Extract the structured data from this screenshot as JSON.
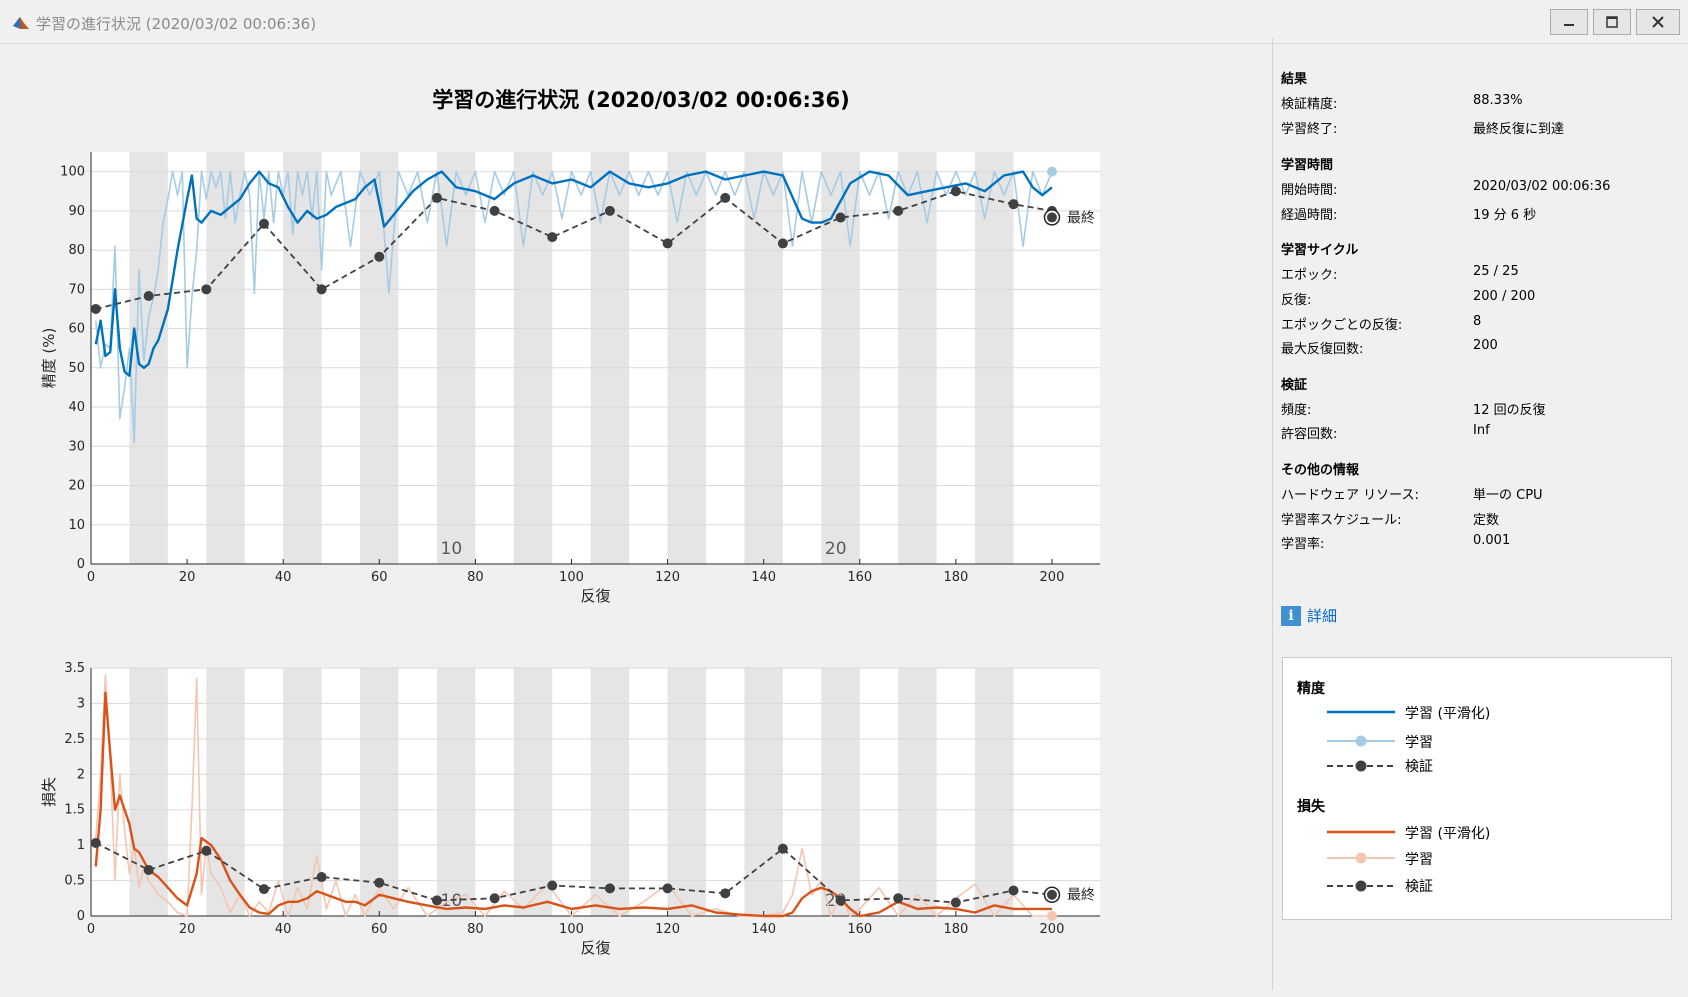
{
  "window": {
    "title": "学習の進行状況 (2020/03/02 00:06:36)"
  },
  "main_title": "学習の進行状況 (2020/03/02 00:06:36)",
  "panel": {
    "results_h": "結果",
    "val_acc_k": "検証精度:",
    "val_acc_v": "88.33%",
    "end_k": "学習終了:",
    "end_v": "最終反復に到達",
    "time_h": "学習時間",
    "start_k": "開始時間:",
    "start_v": "2020/03/02 00:06:36",
    "elapsed_k": "経過時間:",
    "elapsed_v": "19 分 6 秒",
    "cycle_h": "学習サイクル",
    "epoch_k": "エポック:",
    "epoch_v": "25 / 25",
    "iter_k": "反復:",
    "iter_v": "200 / 200",
    "iter_per_epoch_k": "エポックごとの反復:",
    "iter_per_epoch_v": "8",
    "max_iter_k": "最大反復回数:",
    "max_iter_v": "200",
    "val_h": "検証",
    "freq_k": "頻度:",
    "freq_v": "12 回の反復",
    "patience_k": "許容回数:",
    "patience_v": "Inf",
    "other_h": "その他の情報",
    "hw_k": "ハードウェア リソース:",
    "hw_v": "単一の CPU",
    "sched_k": "学習率スケジュール:",
    "sched_v": "定数",
    "lr_k": "学習率:",
    "lr_v": "0.001",
    "detail": "詳細"
  },
  "legend": {
    "acc_h": "精度",
    "acc_smooth": "学習 (平滑化)",
    "acc_train": "学習",
    "acc_val": "検証",
    "loss_h": "損失",
    "loss_smooth": "学習 (平滑化)",
    "loss_train": "学習",
    "loss_val": "検証"
  },
  "colors": {
    "acc_smooth": "#0072bd",
    "acc_train": "#a6cbe5",
    "loss_smooth": "#d95319",
    "loss_train": "#f4c6b2",
    "val": "#404040",
    "shade": "#e5e5e5"
  },
  "chart_data": [
    {
      "type": "line",
      "xlabel": "反復",
      "ylabel": "精度 (%)",
      "xlim": [
        0,
        210
      ],
      "ylim": [
        0,
        105
      ],
      "xticks": [
        "0",
        "20",
        "40",
        "60",
        "80",
        "100",
        "120",
        "140",
        "160",
        "180",
        "200"
      ],
      "yticks": [
        "0",
        "10",
        "20",
        "30",
        "40",
        "50",
        "60",
        "70",
        "80",
        "90",
        "100"
      ],
      "epoch_labels": [
        {
          "epoch": "10",
          "x": 75
        },
        {
          "epoch": "20",
          "x": 155
        }
      ],
      "final_label": "最終",
      "series": [
        {
          "key": "acc_smooth",
          "x": [
            1,
            2,
            3,
            4,
            5,
            6,
            7,
            8,
            9,
            10,
            11,
            12,
            13,
            14,
            16,
            18,
            20,
            21,
            22,
            23,
            25,
            27,
            29,
            31,
            33,
            35,
            37,
            39,
            41,
            43,
            45,
            47,
            49,
            51,
            53,
            55,
            57,
            59,
            61,
            63,
            65,
            67,
            70,
            73,
            76,
            80,
            84,
            88,
            92,
            96,
            100,
            104,
            108,
            112,
            116,
            120,
            124,
            128,
            132,
            136,
            140,
            144,
            148,
            150,
            152,
            154,
            158,
            162,
            166,
            170,
            174,
            178,
            182,
            186,
            190,
            194,
            196,
            198,
            200
          ],
          "y": [
            56,
            62,
            53,
            54,
            70,
            55,
            49,
            48,
            60,
            51,
            50,
            51,
            55,
            57,
            65,
            80,
            93,
            99,
            88,
            87,
            90,
            89,
            91,
            93,
            97,
            100,
            97,
            96,
            91,
            87,
            90,
            88,
            89,
            91,
            92,
            93,
            96,
            98,
            86,
            89,
            92,
            95,
            98,
            100,
            96,
            95,
            93,
            97,
            99,
            97,
            98,
            96,
            100,
            97,
            96,
            97,
            99,
            100,
            98,
            99,
            100,
            99,
            88,
            87,
            87,
            88,
            97,
            100,
            99,
            94,
            95,
            96,
            97,
            95,
            99,
            100,
            96,
            94,
            96
          ]
        },
        {
          "key": "acc_train",
          "x": [
            1,
            2,
            3,
            4,
            5,
            6,
            7,
            8,
            9,
            10,
            11,
            12,
            13,
            14,
            15,
            16,
            17,
            18,
            19,
            20,
            21,
            22,
            23,
            24,
            25,
            26,
            27,
            28,
            29,
            30,
            31,
            32,
            33,
            34,
            35,
            36,
            37,
            38,
            39,
            40,
            41,
            42,
            43,
            44,
            45,
            46,
            47,
            48,
            49,
            50,
            52,
            54,
            56,
            58,
            60,
            62,
            64,
            66,
            68,
            70,
            72,
            74,
            76,
            78,
            80,
            82,
            84,
            86,
            88,
            90,
            92,
            94,
            96,
            98,
            100,
            102,
            104,
            106,
            108,
            110,
            112,
            114,
            116,
            118,
            120,
            122,
            124,
            126,
            128,
            130,
            132,
            134,
            136,
            138,
            140,
            142,
            144,
            146,
            148,
            150,
            152,
            154,
            156,
            158,
            160,
            162,
            164,
            166,
            168,
            170,
            172,
            174,
            176,
            178,
            180,
            182,
            184,
            186,
            188,
            190,
            192,
            194,
            196,
            198,
            200
          ],
          "y": [
            62,
            50,
            56,
            55,
            81,
            37,
            45,
            55,
            31,
            75,
            52,
            63,
            68,
            75,
            87,
            93,
            100,
            94,
            100,
            50,
            68,
            80,
            100,
            93,
            100,
            96,
            100,
            88,
            100,
            87,
            94,
            100,
            94,
            69,
            100,
            88,
            100,
            87,
            100,
            94,
            100,
            84,
            100,
            94,
            100,
            88,
            100,
            75,
            100,
            94,
            100,
            81,
            100,
            94,
            100,
            69,
            100,
            94,
            100,
            87,
            100,
            81,
            100,
            94,
            100,
            87,
            100,
            94,
            100,
            81,
            100,
            94,
            100,
            88,
            100,
            94,
            100,
            87,
            100,
            94,
            100,
            94,
            100,
            94,
            100,
            87,
            100,
            94,
            100,
            94,
            100,
            94,
            100,
            88,
            100,
            94,
            100,
            81,
            100,
            87,
            100,
            94,
            100,
            81,
            100,
            94,
            100,
            88,
            100,
            94,
            100,
            87,
            100,
            94,
            100,
            94,
            100,
            88,
            100,
            94,
            100,
            81,
            100,
            94,
            100
          ]
        },
        {
          "key": "val",
          "x": [
            1,
            12,
            24,
            36,
            48,
            60,
            72,
            84,
            96,
            108,
            120,
            132,
            144,
            156,
            168,
            180,
            192,
            200
          ],
          "y": [
            65,
            68.3,
            70,
            86.7,
            70,
            78.3,
            93.3,
            90,
            83.3,
            90,
            81.7,
            93.3,
            81.7,
            88.3,
            90,
            95,
            91.7,
            90
          ]
        }
      ],
      "final_markers": [
        {
          "key": "acc_train",
          "x": 200,
          "y": 100
        },
        {
          "key": "val",
          "x": 200,
          "y": 88.33
        }
      ]
    },
    {
      "type": "line",
      "xlabel": "反復",
      "ylabel": "損失",
      "xlim": [
        0,
        210
      ],
      "ylim": [
        0,
        3.5
      ],
      "xticks": [
        "0",
        "20",
        "40",
        "60",
        "80",
        "100",
        "120",
        "140",
        "160",
        "180",
        "200"
      ],
      "yticks": [
        "0",
        "0.5",
        "1",
        "1.5",
        "2",
        "2.5",
        "3",
        "3.5"
      ],
      "epoch_labels": [
        {
          "epoch": "10",
          "x": 75
        },
        {
          "epoch": "20",
          "x": 155
        }
      ],
      "final_label": "最終",
      "series": [
        {
          "key": "loss_smooth",
          "x": [
            1,
            2,
            3,
            4,
            5,
            6,
            7,
            8,
            9,
            10,
            12,
            14,
            16,
            18,
            20,
            22,
            23,
            25,
            27,
            29,
            31,
            33,
            35,
            37,
            39,
            41,
            43,
            45,
            47,
            49,
            51,
            53,
            55,
            57,
            60,
            63,
            66,
            70,
            74,
            78,
            82,
            86,
            90,
            95,
            100,
            105,
            110,
            115,
            120,
            125,
            130,
            135,
            140,
            144,
            146,
            148,
            150,
            152,
            154,
            156,
            158,
            160,
            164,
            168,
            172,
            176,
            180,
            184,
            188,
            192,
            196,
            200
          ],
          "y": [
            0.7,
            1.5,
            3.15,
            2.3,
            1.5,
            1.7,
            1.5,
            1.3,
            0.95,
            0.9,
            0.65,
            0.55,
            0.4,
            0.25,
            0.15,
            0.6,
            1.1,
            1.0,
            0.8,
            0.5,
            0.3,
            0.12,
            0.05,
            0.03,
            0.15,
            0.2,
            0.2,
            0.25,
            0.35,
            0.3,
            0.25,
            0.2,
            0.2,
            0.15,
            0.3,
            0.25,
            0.2,
            0.15,
            0.1,
            0.12,
            0.1,
            0.15,
            0.12,
            0.2,
            0.1,
            0.15,
            0.1,
            0.12,
            0.1,
            0.15,
            0.05,
            0.02,
            0.0,
            0.0,
            0.05,
            0.25,
            0.35,
            0.4,
            0.35,
            0.25,
            0.1,
            0.0,
            0.05,
            0.2,
            0.1,
            0.12,
            0.1,
            0.05,
            0.15,
            0.1,
            0.1,
            0.1
          ]
        },
        {
          "key": "loss_train",
          "x": [
            1,
            2,
            3,
            4,
            5,
            6,
            7,
            8,
            9,
            10,
            11,
            12,
            14,
            16,
            18,
            20,
            21,
            22,
            23,
            24,
            25,
            27,
            29,
            31,
            33,
            35,
            37,
            39,
            41,
            43,
            45,
            47,
            49,
            51,
            53,
            55,
            57,
            60,
            63,
            66,
            70,
            74,
            78,
            82,
            86,
            90,
            95,
            100,
            105,
            110,
            115,
            120,
            125,
            130,
            135,
            140,
            144,
            146,
            148,
            150,
            152,
            154,
            156,
            158,
            160,
            164,
            168,
            172,
            176,
            180,
            184,
            188,
            192,
            196,
            200
          ],
          "y": [
            1.1,
            2.0,
            3.4,
            2.2,
            0.5,
            2.0,
            1.2,
            0.6,
            1.0,
            0.4,
            0.7,
            0.5,
            0.3,
            0.2,
            0.05,
            0.0,
            1.5,
            3.35,
            0.3,
            1.0,
            0.6,
            0.4,
            0.05,
            0.3,
            0.0,
            0.2,
            0.05,
            0.5,
            0.0,
            0.4,
            0.1,
            0.85,
            0.1,
            0.5,
            0.0,
            0.3,
            0.0,
            0.4,
            0.1,
            0.4,
            0.0,
            0.2,
            0.3,
            0.0,
            0.35,
            0.1,
            0.45,
            0.0,
            0.3,
            0.0,
            0.2,
            0.45,
            0.0,
            0.1,
            0.0,
            0.0,
            0.05,
            0.3,
            0.95,
            0.3,
            0.5,
            0.0,
            0.3,
            0.0,
            0.1,
            0.4,
            0.0,
            0.3,
            0.0,
            0.25,
            0.45,
            0.0,
            0.3,
            0.0,
            0.0
          ]
        },
        {
          "key": "val",
          "x": [
            1,
            12,
            24,
            36,
            48,
            60,
            72,
            84,
            96,
            108,
            120,
            132,
            144,
            156,
            168,
            180,
            192,
            200
          ],
          "y": [
            1.03,
            0.65,
            0.92,
            0.38,
            0.55,
            0.47,
            0.22,
            0.25,
            0.43,
            0.39,
            0.39,
            0.32,
            0.95,
            0.22,
            0.25,
            0.19,
            0.36,
            0.3
          ]
        }
      ],
      "final_markers": [
        {
          "key": "loss_train",
          "x": 200,
          "y": 0.0
        },
        {
          "key": "val",
          "x": 200,
          "y": 0.3
        }
      ]
    }
  ]
}
